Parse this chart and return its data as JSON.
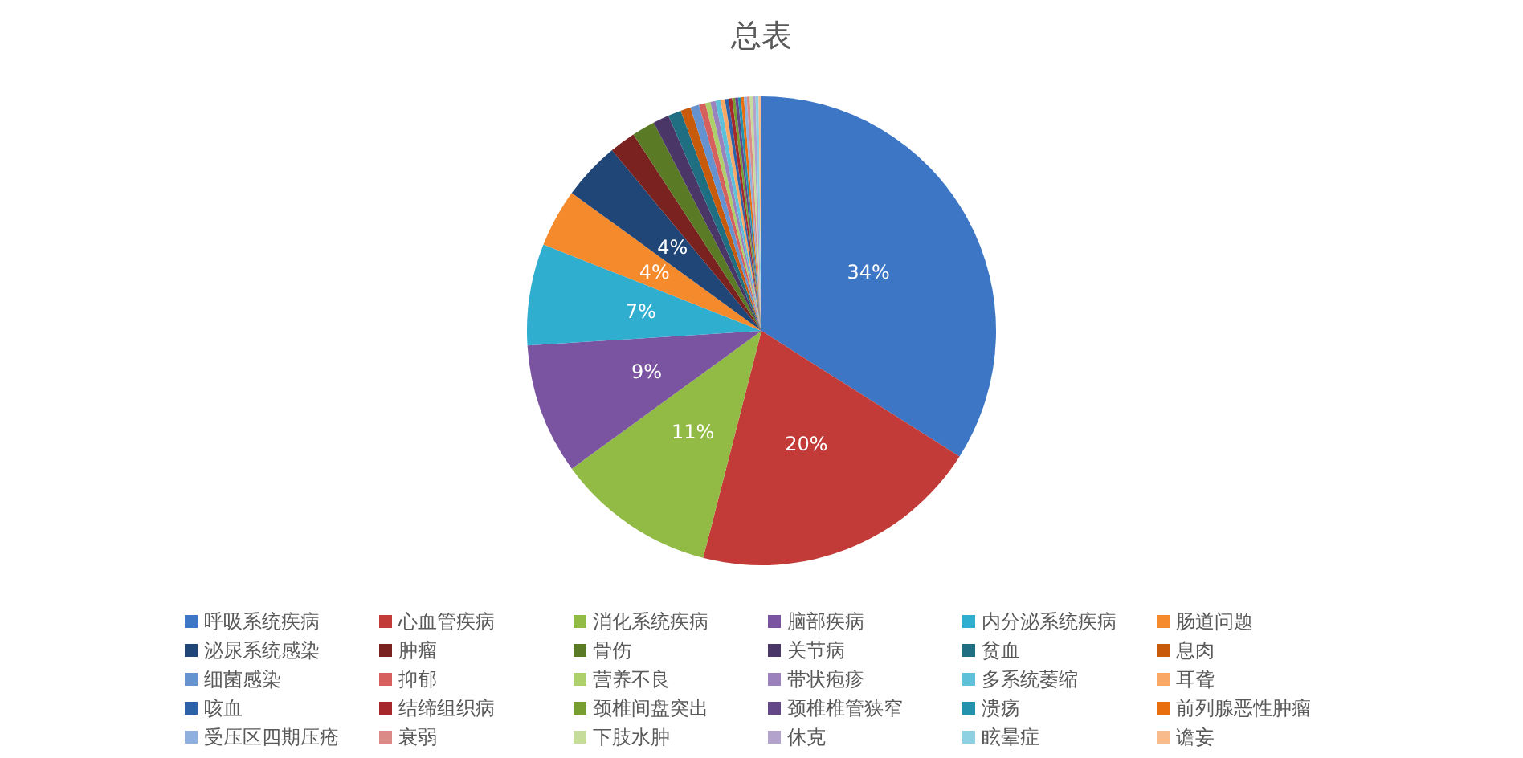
{
  "chart_data": {
    "type": "pie",
    "title": "总表",
    "categories": [
      "呼吸系统疾病",
      "心血管疾病",
      "消化系统疾病",
      "脑部疾病",
      "内分泌系统疾病",
      "肠道问题",
      "泌尿系统感染",
      "肿瘤",
      "骨伤",
      "关节病",
      "贫血",
      "息肉",
      "细菌感染",
      "抑郁",
      "营养不良",
      "带状疱疹",
      "多系统萎缩",
      "耳聋",
      "咳血",
      "结缔组织病",
      "颈椎间盘突出",
      "颈椎椎管狭窄",
      "溃疡",
      "前列腺恶性肿瘤",
      "受压区四期压疮",
      "衰弱",
      "下肢水肿",
      "休克",
      "眩晕症",
      "谵妄"
    ],
    "values": [
      34,
      20,
      11,
      9,
      7,
      4,
      4,
      1.8,
      1.6,
      1.1,
      0.9,
      0.7,
      0.6,
      0.45,
      0.35,
      0.35,
      0.35,
      0.3,
      0.25,
      0.25,
      0.2,
      0.2,
      0.2,
      0.2,
      0.2,
      0.2,
      0.2,
      0.2,
      0.2,
      0.2
    ],
    "value_labels": [
      "34%",
      "20%",
      "11%",
      "9%",
      "7%",
      "4%",
      "4%",
      null,
      null,
      null,
      null,
      null,
      null,
      null,
      null,
      null,
      null,
      null,
      null,
      null,
      null,
      null,
      null,
      null,
      null,
      null,
      null,
      null,
      null,
      null
    ],
    "colors": [
      "#3c76c4",
      "#c23b38",
      "#92bb45",
      "#7a54a0",
      "#30aed0",
      "#f58a2c",
      "#1f4677",
      "#7a221f",
      "#5a7a26",
      "#4b3668",
      "#1f6e82",
      "#c75a0b",
      "#6593d0",
      "#d6605e",
      "#aed06a",
      "#9b82bd",
      "#5fc0da",
      "#f9a866",
      "#2d62a8",
      "#a6282a",
      "#789e32",
      "#644787",
      "#2491ad",
      "#e86e0e",
      "#8fb0dc",
      "#db8a88",
      "#c5dc9a",
      "#b3a3cc",
      "#8ed1e3",
      "#f8bc8c"
    ],
    "legend": "bottom"
  }
}
